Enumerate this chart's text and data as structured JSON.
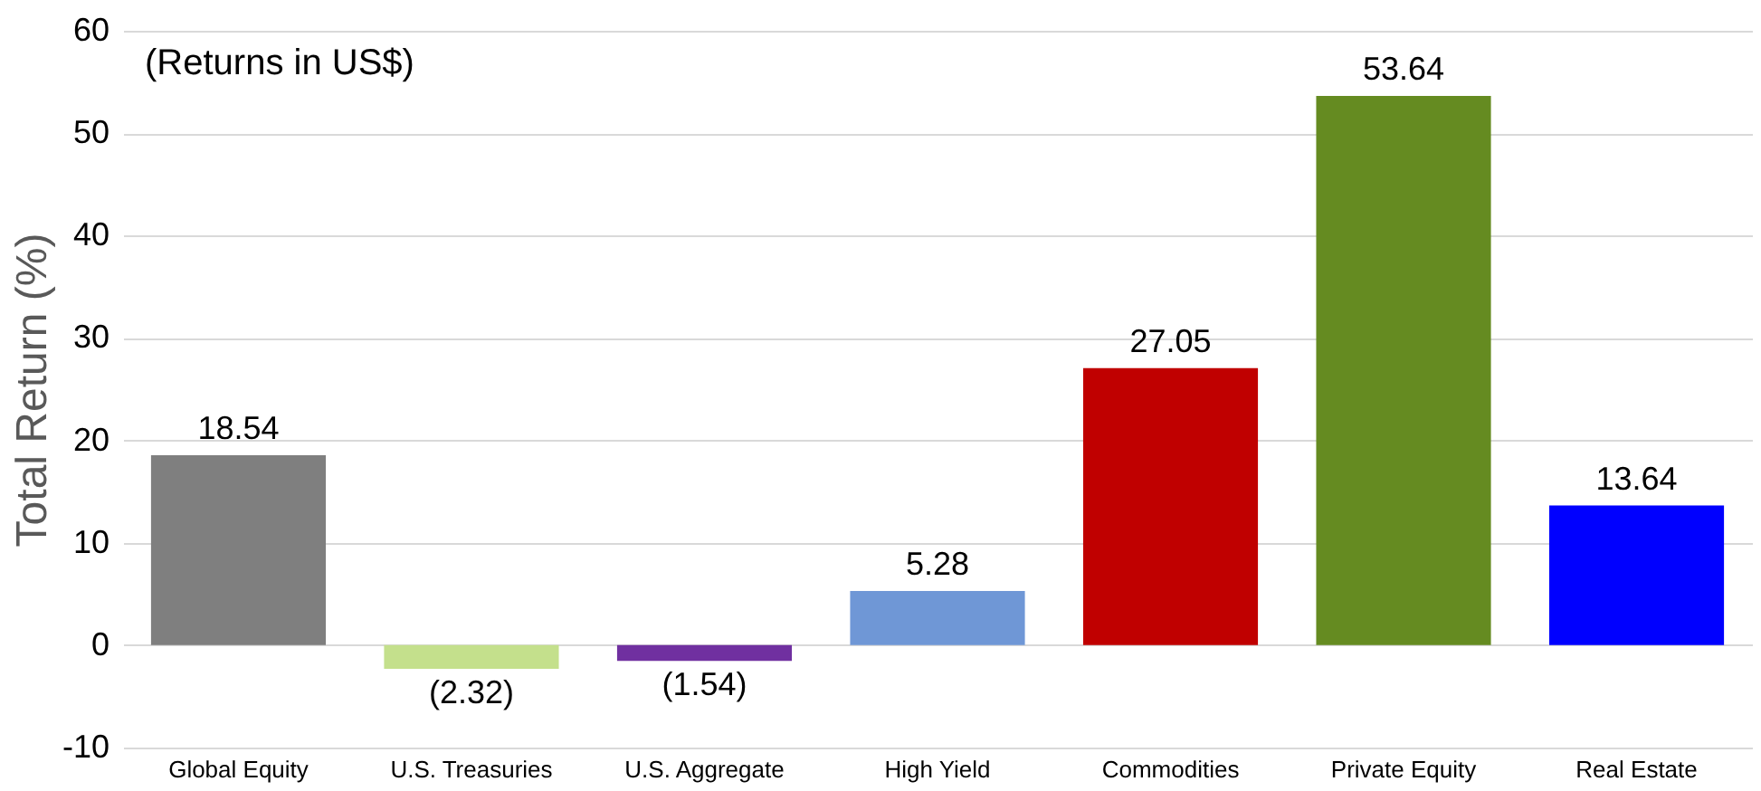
{
  "chart_data": {
    "type": "bar",
    "ylabel": "Total Return (%)",
    "annotations": [
      "(Returns in US$)"
    ],
    "categories": [
      "Global Equity",
      "U.S. Treasuries",
      "U.S. Aggregate",
      "High Yield",
      "Commodities",
      "Private Equity",
      "Real Estate"
    ],
    "values": [
      18.54,
      -2.32,
      -1.54,
      5.28,
      27.05,
      53.64,
      13.64
    ],
    "colors": [
      "#7f7f7f",
      "#c4e08c",
      "#7030a0",
      "#6f97d6",
      "#c00000",
      "#658b21",
      "#0000ff"
    ],
    "value_labels": [
      "18.54",
      "(2.32)",
      "(1.54)",
      "5.28",
      "27.05",
      "53.64",
      "13.64"
    ],
    "ylim": [
      -10,
      60
    ],
    "yticks": [
      -10,
      0,
      10,
      20,
      30,
      40,
      50,
      60
    ],
    "grid": "y"
  }
}
